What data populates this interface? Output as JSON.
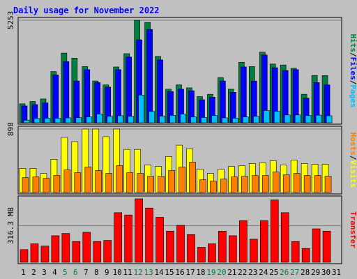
{
  "chart_data": {
    "type": "bar",
    "title": "Daily usage for November 2022",
    "categories": [
      "1",
      "2",
      "3",
      "4",
      "5",
      "6",
      "7",
      "8",
      "9",
      "10",
      "11",
      "12",
      "13",
      "14",
      "15",
      "16",
      "17",
      "18",
      "19",
      "20",
      "21",
      "22",
      "23",
      "24",
      "25",
      "26",
      "27",
      "28",
      "29",
      "30",
      "31"
    ],
    "weekend_days": [
      "5",
      "6",
      "12",
      "13",
      "19",
      "20",
      "26",
      "27"
    ],
    "panels": [
      {
        "name": "hits-files-pages",
        "side_label_parts": [
          "Hits",
          "Files",
          "Pages"
        ],
        "side_label_colors": [
          "#008040",
          "#0000ff",
          "#00c0ff"
        ],
        "ytick_label": "5253",
        "ytick_value": 5253,
        "ylim": [
          0,
          5253
        ],
        "series": [
          {
            "name": "Hits",
            "color": "#008040",
            "values": [
              970,
              1090,
              1220,
              2620,
              3570,
              3310,
              2880,
              2140,
              1940,
              2860,
              3540,
              5253,
              5140,
              3400,
              1720,
              1940,
              1790,
              1340,
              1460,
              2310,
              1720,
              3100,
              2880,
              3620,
              3010,
              2960,
              2790,
              1460,
              2420,
              2420,
              0
            ]
          },
          {
            "name": "Files",
            "color": "#0000ff",
            "values": [
              860,
              930,
              1020,
              2450,
              3130,
              2140,
              2720,
              2060,
              1830,
              2720,
              3370,
              4250,
              4780,
              3220,
              1600,
              1720,
              1640,
              1180,
              1310,
              2140,
              1560,
              2860,
              2140,
              3470,
              2820,
              2680,
              2720,
              1260,
              2060,
              1940,
              0
            ]
          },
          {
            "name": "Pages",
            "color": "#00c0ff",
            "values": [
              130,
              220,
              230,
              230,
              250,
              260,
              300,
              450,
              330,
              360,
              330,
              1420,
              580,
              340,
              380,
              450,
              300,
              270,
              370,
              250,
              230,
              300,
              330,
              630,
              590,
              400,
              400,
              370,
              390,
              360,
              0
            ]
          }
        ]
      },
      {
        "name": "hosts-visits",
        "side_label_parts": [
          "Hosts",
          "Visits"
        ],
        "side_label_colors": [
          "#ff8000",
          "#ffff00"
        ],
        "ytick_label": "898",
        "ytick_value": 898,
        "ylim": [
          0,
          898
        ],
        "series": [
          {
            "name": "Visits",
            "color": "#ffff00",
            "values": [
              340,
              340,
              270,
              470,
              780,
              720,
              898,
              898,
              790,
              898,
              610,
              610,
              390,
              370,
              510,
              670,
              620,
              330,
              270,
              330,
              370,
              380,
              410,
              420,
              450,
              390,
              460,
              410,
              400,
              400,
              0
            ]
          },
          {
            "name": "Hosts",
            "color": "#ff8000",
            "values": [
              210,
              220,
              200,
              240,
              320,
              280,
              360,
              310,
              270,
              380,
              280,
              270,
              230,
              230,
              310,
              360,
              430,
              180,
              160,
              190,
              220,
              230,
              240,
              240,
              290,
              250,
              270,
              240,
              240,
              230,
              0
            ]
          }
        ]
      },
      {
        "name": "transfer",
        "side_label_parts": [
          "Transfer"
        ],
        "side_label_colors": [
          "#ff0000"
        ],
        "ytick_label": "316.3 MB",
        "ytick_value": 316.3,
        "ylim": [
          0,
          550
        ],
        "series": [
          {
            "name": "Transfer",
            "color": "#ff0000",
            "values": [
              110,
              160,
              140,
              230,
              250,
              180,
              260,
              180,
              190,
              430,
              410,
              550,
              470,
              390,
              270,
              320,
              240,
              130,
              160,
              270,
              230,
              360,
              200,
              360,
              540,
              430,
              180,
              120,
              290,
              270,
              0
            ]
          }
        ]
      }
    ]
  }
}
